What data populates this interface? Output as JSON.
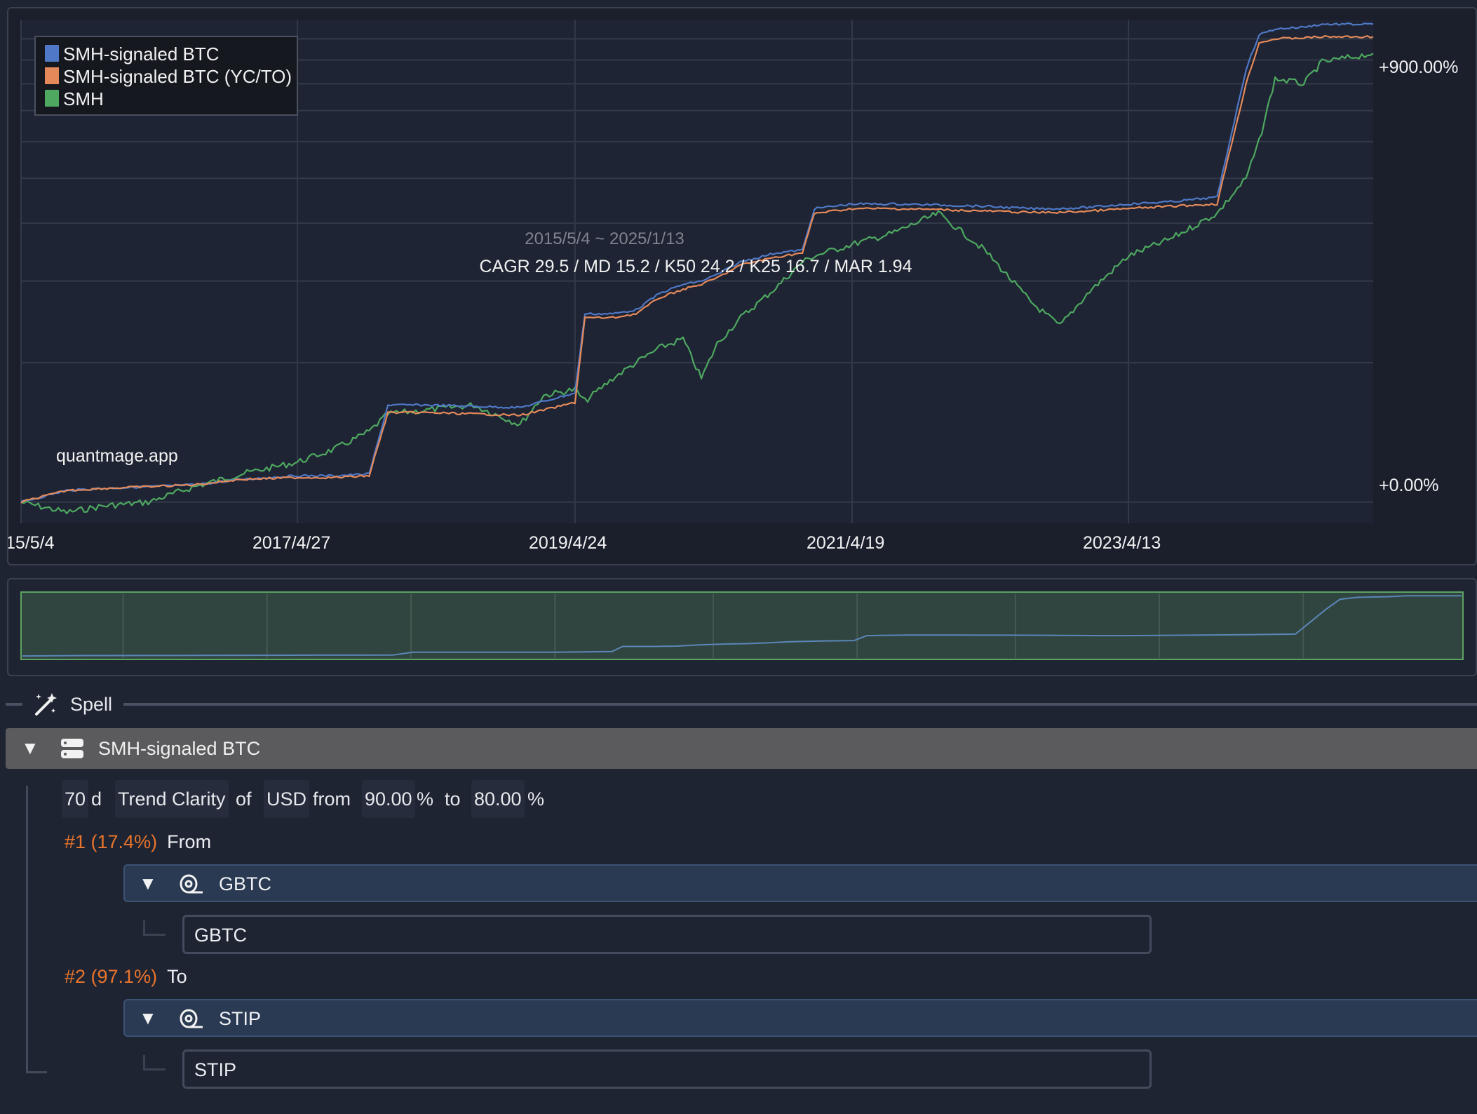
{
  "chart": {
    "legend": [
      "SMH-signaled BTC",
      "SMH-signaled BTC (YC/TO)",
      "SMH"
    ],
    "watermark": "quantmage.app",
    "date_range": "2015/5/4 ~ 2025/1/13",
    "stats": "CAGR 29.5 / MD 15.2 / K50 24.2 / K25 16.7 / MAR 1.94",
    "y_labels": [
      "+900.00%",
      "+0.00%"
    ],
    "x_labels": [
      "15/5/4",
      "2017/4/27",
      "2019/4/24",
      "2021/4/19",
      "2023/4/13"
    ],
    "colors": {
      "btc": "#4f78c6",
      "btc_yc": "#e4895a",
      "smh": "#4ea860",
      "grid": "#323948",
      "bg": "#1b1f2c"
    }
  },
  "chart_data": {
    "type": "line",
    "x_axis": "date",
    "y_axis": "cumulative return (%)",
    "y_scale": "log",
    "y_ticks_labeled": [
      "+0.00%",
      "+900.00%"
    ],
    "x": [
      "2015-05-04",
      "2015-09-01",
      "2015-12-01",
      "2016-04-01",
      "2016-08-01",
      "2016-12-01",
      "2017-04-27",
      "2017-08-01",
      "2017-11-01",
      "2017-12-20",
      "2018-04-01",
      "2018-08-01",
      "2018-12-01",
      "2019-02-01",
      "2019-04-24",
      "2019-05-20",
      "2019-08-01",
      "2019-10-01",
      "2019-12-01",
      "2020-02-01",
      "2020-03-20",
      "2020-05-01",
      "2020-07-01",
      "2020-10-01",
      "2020-12-10",
      "2021-01-10",
      "2021-04-19",
      "2021-08-01",
      "2021-12-01",
      "2022-04-01",
      "2022-08-01",
      "2022-10-15",
      "2023-01-01",
      "2023-04-13",
      "2023-08-01",
      "2023-12-01",
      "2024-02-15",
      "2024-03-20",
      "2024-05-01",
      "2024-07-15",
      "2024-09-01",
      "2025-01-13"
    ],
    "series": [
      {
        "name": "SMH-signaled BTC",
        "values": [
          0,
          6,
          7,
          8,
          9,
          12,
          14,
          14,
          15,
          62,
          62,
          61,
          60,
          65,
          72,
          155,
          155,
          160,
          182,
          195,
          200,
          210,
          230,
          245,
          250,
          330,
          340,
          340,
          338,
          335,
          330,
          330,
          333,
          340,
          345,
          355,
          760,
          920,
          950,
          960,
          975,
          975
        ]
      },
      {
        "name": "SMH-signaled BTC (YC/TO)",
        "values": [
          0,
          6,
          7,
          8,
          9,
          12,
          13,
          13,
          14,
          56,
          56,
          55,
          54,
          58,
          64,
          150,
          150,
          155,
          176,
          188,
          195,
          205,
          225,
          238,
          245,
          320,
          330,
          330,
          328,
          325,
          322,
          322,
          325,
          330,
          335,
          340,
          700,
          880,
          900,
          905,
          910,
          910
        ]
      },
      {
        "name": "SMH",
        "values": [
          0,
          -5,
          -2,
          0,
          8,
          15,
          22,
          30,
          42,
          55,
          58,
          62,
          47,
          70,
          75,
          65,
          85,
          100,
          115,
          125,
          85,
          120,
          150,
          190,
          230,
          240,
          260,
          280,
          320,
          250,
          170,
          140,
          185,
          240,
          270,
          320,
          400,
          500,
          720,
          700,
          790,
          830
        ]
      }
    ]
  },
  "navigator": {
    "line_color": "#5a86b8",
    "fill": "#314540",
    "border": "#5ea262"
  },
  "spell": {
    "label": "Spell"
  },
  "strategy": {
    "name": "SMH-signaled BTC"
  },
  "condition": {
    "window": "70",
    "unit": "d",
    "indicator": "Trend Clarity",
    "of_word": "of",
    "asset": "USD",
    "from_word": "from",
    "from_value": "90.00",
    "from_unit": "%",
    "to_word": "to",
    "to_value": "80.00",
    "to_unit": "%"
  },
  "branches": [
    {
      "pct": "#1 (17.4%)",
      "word": "From",
      "group": "GBTC",
      "leaf": "GBTC"
    },
    {
      "pct": "#2 (97.1%)",
      "word": "To",
      "group": "STIP",
      "leaf": "STIP"
    }
  ]
}
